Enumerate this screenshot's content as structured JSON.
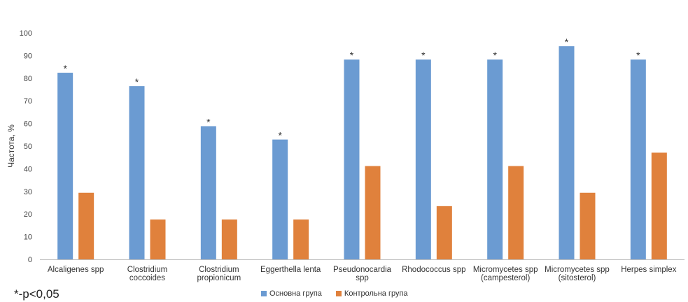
{
  "chart_data": {
    "type": "bar",
    "ylabel": "Частота, %",
    "ylim": [
      0,
      100
    ],
    "yticks": [
      "0",
      "10",
      "20",
      "30",
      "40",
      "50",
      "60",
      "70",
      "80",
      "90",
      "100"
    ],
    "categories": [
      [
        "Alcaligenes spp"
      ],
      [
        "Clostridium",
        "coccoides"
      ],
      [
        "Clostridium",
        "propionicum"
      ],
      [
        "Eggerthella lenta"
      ],
      [
        "Pseudonocardia",
        "spp"
      ],
      [
        "Rhodococcus spp"
      ],
      [
        "Micromycetes spp",
        "(campesterol)"
      ],
      [
        "Micromycetes spp",
        "(sitosterol)"
      ],
      [
        "Herpes simplex"
      ]
    ],
    "series": [
      {
        "name": "Основна група",
        "color": "#6b9bd2",
        "values": [
          82.4,
          76.5,
          58.8,
          52.9,
          88.2,
          88.2,
          88.2,
          94.1,
          88.2
        ]
      },
      {
        "name": "Контрольна група",
        "color": "#e0813c",
        "values": [
          29.4,
          17.6,
          17.6,
          17.6,
          41.2,
          23.5,
          41.2,
          29.4,
          47.1
        ]
      }
    ],
    "significance_marker": "*",
    "significant": [
      true,
      true,
      true,
      true,
      true,
      true,
      true,
      true,
      true
    ],
    "grid": false,
    "legend_position": "bottom"
  },
  "footnote": "*-p<0,05"
}
